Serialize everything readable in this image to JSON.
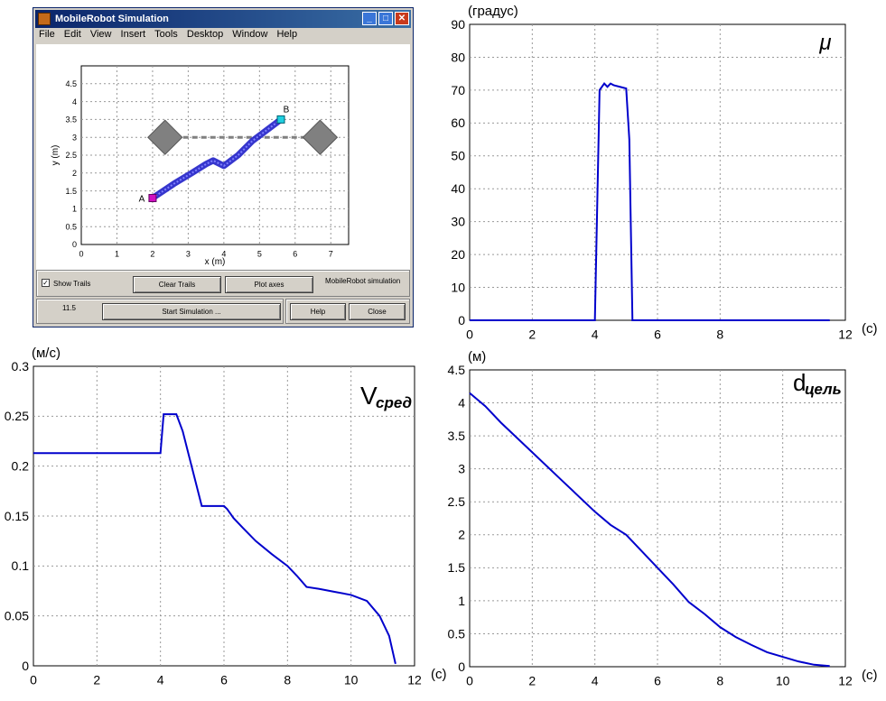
{
  "window": {
    "title": "MobileRobot Simulation",
    "menu": [
      "File",
      "Edit",
      "View",
      "Insert",
      "Tools",
      "Desktop",
      "Window",
      "Help"
    ],
    "controls": {
      "show_trails": "Show Trails",
      "clear_trails": "Clear Trails",
      "plot_axes": "Plot axes",
      "caption": "MobileRobot simulation",
      "time_value": "11.5",
      "start": "Start Simulation ...",
      "help": "Help",
      "close": "Close"
    },
    "colors": {
      "title_bar": "#0a246a",
      "face": "#d4d0c8"
    }
  },
  "chart_data": [
    {
      "type": "scatter",
      "xlabel": "x (m)",
      "ylabel": "y (m)",
      "xlim": [
        0,
        7.5
      ],
      "ylim": [
        0,
        5
      ],
      "xticks": [
        "0",
        "1",
        "2",
        "3",
        "4",
        "5",
        "6",
        "7"
      ],
      "yticks": [
        "0",
        "0.5",
        "1",
        "1.5",
        "2",
        "2.5",
        "3",
        "3.5",
        "4",
        "4.5"
      ],
      "grid": true,
      "points": {
        "A": [
          2,
          1.3
        ],
        "B": [
          5.6,
          3.5
        ]
      },
      "point_labels": [
        "A",
        "B"
      ],
      "obstacles": [
        [
          2.35,
          3.0
        ],
        [
          6.7,
          3.0
        ]
      ],
      "dashed_line": {
        "x": [
          2.35,
          6.7
        ],
        "y": 3.0
      },
      "trail": {
        "x": [
          2.0,
          2.6,
          3.1,
          3.5,
          3.7,
          4.0,
          4.4,
          4.8,
          5.2,
          5.6
        ],
        "y": [
          1.3,
          1.7,
          2.0,
          2.25,
          2.35,
          2.2,
          2.5,
          2.9,
          3.2,
          3.5
        ]
      },
      "colors": {
        "trail": "#2020c8",
        "A": "#d010c0",
        "B": "#20d0e0",
        "obstacle": "#808080"
      }
    },
    {
      "type": "line",
      "title": "μ",
      "ylabel": "(градус)",
      "xlabel": "(с)",
      "xlim": [
        0,
        12
      ],
      "ylim": [
        0,
        90
      ],
      "xticks": [
        "0",
        "2",
        "4",
        "6",
        "8",
        "12"
      ],
      "yticks": [
        "0",
        "10",
        "20",
        "30",
        "40",
        "50",
        "60",
        "70",
        "80",
        "90"
      ],
      "grid": true,
      "series": [
        {
          "color": "#0000cc",
          "x": [
            0,
            4.0,
            4.15,
            4.3,
            4.4,
            4.5,
            4.6,
            4.8,
            5.0,
            5.1,
            5.2,
            11.5
          ],
          "y": [
            0,
            0,
            70,
            72,
            71,
            72,
            71.5,
            71,
            70.5,
            55,
            0,
            0
          ]
        }
      ]
    },
    {
      "type": "line",
      "title": "V",
      "title_subscript": "сред",
      "ylabel": "(м/с)",
      "xlabel": "(с)",
      "xlim": [
        0,
        12
      ],
      "ylim": [
        0,
        0.3
      ],
      "xticks": [
        "0",
        "2",
        "4",
        "6",
        "8",
        "10",
        "12"
      ],
      "yticks": [
        "0",
        "0.05",
        "0.1",
        "0.15",
        "0.2",
        "0.25",
        "0.3"
      ],
      "grid": true,
      "series": [
        {
          "color": "#0000cc",
          "x": [
            0,
            3.9,
            4.0,
            4.1,
            4.5,
            4.7,
            4.9,
            5.1,
            5.3,
            5.4,
            6.0,
            6.1,
            6.3,
            6.6,
            7.0,
            7.5,
            8.0,
            8.3,
            8.6,
            9.0,
            9.5,
            10.0,
            10.5,
            10.9,
            11.2,
            11.4
          ],
          "y": [
            0.213,
            0.213,
            0.213,
            0.252,
            0.252,
            0.235,
            0.21,
            0.185,
            0.16,
            0.16,
            0.16,
            0.157,
            0.148,
            0.138,
            0.125,
            0.112,
            0.1,
            0.09,
            0.079,
            0.077,
            0.074,
            0.071,
            0.065,
            0.05,
            0.03,
            0.002
          ]
        }
      ]
    },
    {
      "type": "line",
      "title": "d",
      "title_subscript": "цель",
      "ylabel": "(м)",
      "xlabel": "(с)",
      "xlim": [
        0,
        12
      ],
      "ylim": [
        0,
        4.5
      ],
      "xticks": [
        "0",
        "2",
        "4",
        "6",
        "8",
        "10",
        "12"
      ],
      "yticks": [
        "0",
        "0.5",
        "1",
        "1.5",
        "2",
        "2.5",
        "3",
        "3.5",
        "4",
        "4.5"
      ],
      "grid": true,
      "series": [
        {
          "color": "#0000cc",
          "x": [
            0,
            0.5,
            1,
            2,
            3,
            4,
            4.5,
            5,
            5.5,
            6,
            6.5,
            7,
            7.5,
            8,
            8.5,
            9,
            9.5,
            10,
            10.5,
            11,
            11.5
          ],
          "y": [
            4.15,
            3.95,
            3.7,
            3.25,
            2.8,
            2.35,
            2.15,
            2.0,
            1.75,
            1.5,
            1.25,
            0.98,
            0.8,
            0.6,
            0.45,
            0.33,
            0.22,
            0.15,
            0.08,
            0.03,
            0.01
          ]
        }
      ]
    }
  ]
}
